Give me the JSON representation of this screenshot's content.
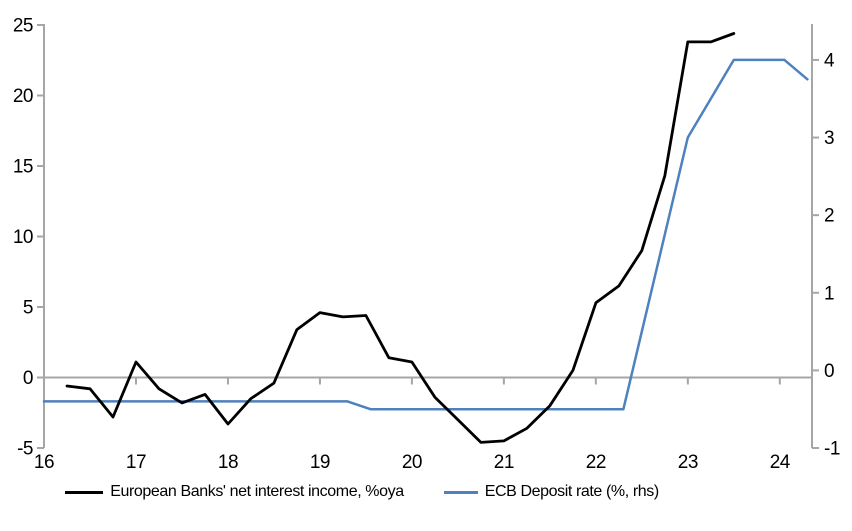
{
  "accent_colors": {
    "series_black": "#000000",
    "series_blue": "#4E81BD",
    "axis_gray": "#A6A6A6"
  },
  "legend": {
    "items": [
      {
        "label": "European Banks' net interest income, %oya",
        "swatch": "black-line"
      },
      {
        "label": "ECB Deposit rate (%, rhs)",
        "swatch": "blue-line"
      }
    ]
  },
  "chart_data": {
    "type": "line",
    "title": "",
    "xlabel": "",
    "ylabel_left": "",
    "ylabel_right": "",
    "grid": "zero-line-only",
    "legend_position": "bottom",
    "x_axis": {
      "range": [
        16,
        24.35
      ],
      "ticks": [
        16,
        17,
        18,
        19,
        20,
        21,
        22,
        23,
        24
      ],
      "tick_labels": [
        "16",
        "17",
        "18",
        "19",
        "20",
        "21",
        "22",
        "23",
        "24"
      ]
    },
    "y_axis_left": {
      "range": [
        -5,
        25
      ],
      "ticks": [
        -5,
        0,
        5,
        10,
        15,
        20,
        25
      ],
      "tick_labels": [
        "-5",
        "0",
        "5",
        "10",
        "15",
        "20",
        "25"
      ]
    },
    "y_axis_right": {
      "range": [
        -1,
        4.45
      ],
      "ticks": [
        -1,
        0,
        1,
        2,
        3,
        4
      ],
      "tick_labels": [
        "-1",
        "0",
        "1",
        "2",
        "3",
        "4"
      ]
    },
    "series": [
      {
        "name": "European Banks' net interest income, %oya",
        "axis": "left",
        "color": "#000000",
        "points": [
          [
            16.25,
            -0.6
          ],
          [
            16.5,
            -0.8
          ],
          [
            16.75,
            -2.8
          ],
          [
            17.0,
            1.1
          ],
          [
            17.25,
            -0.8
          ],
          [
            17.5,
            -1.8
          ],
          [
            17.75,
            -1.2
          ],
          [
            18.0,
            -3.3
          ],
          [
            18.25,
            -1.5
          ],
          [
            18.5,
            -0.4
          ],
          [
            18.75,
            3.4
          ],
          [
            19.0,
            4.6
          ],
          [
            19.25,
            4.3
          ],
          [
            19.5,
            4.4
          ],
          [
            19.75,
            1.4
          ],
          [
            20.0,
            1.1
          ],
          [
            20.25,
            -1.4
          ],
          [
            20.5,
            -3.0
          ],
          [
            20.75,
            -4.6
          ],
          [
            21.0,
            -4.5
          ],
          [
            21.25,
            -3.6
          ],
          [
            21.5,
            -2.0
          ],
          [
            21.75,
            0.5
          ],
          [
            22.0,
            5.3
          ],
          [
            22.25,
            6.5
          ],
          [
            22.5,
            9.0
          ],
          [
            22.75,
            14.3
          ],
          [
            23.0,
            23.8
          ],
          [
            23.25,
            23.8
          ],
          [
            23.5,
            24.4
          ]
        ]
      },
      {
        "name": "ECB Deposit rate (%, rhs)",
        "axis": "right",
        "color": "#4E81BD",
        "points": [
          [
            16.0,
            -0.4
          ],
          [
            19.3,
            -0.4
          ],
          [
            19.55,
            -0.5
          ],
          [
            22.3,
            -0.5
          ],
          [
            22.5,
            0.5
          ],
          [
            22.75,
            1.75
          ],
          [
            23.0,
            3.0
          ],
          [
            23.25,
            3.5
          ],
          [
            23.5,
            4.0
          ],
          [
            24.05,
            4.0
          ],
          [
            24.3,
            3.75
          ]
        ]
      }
    ]
  }
}
